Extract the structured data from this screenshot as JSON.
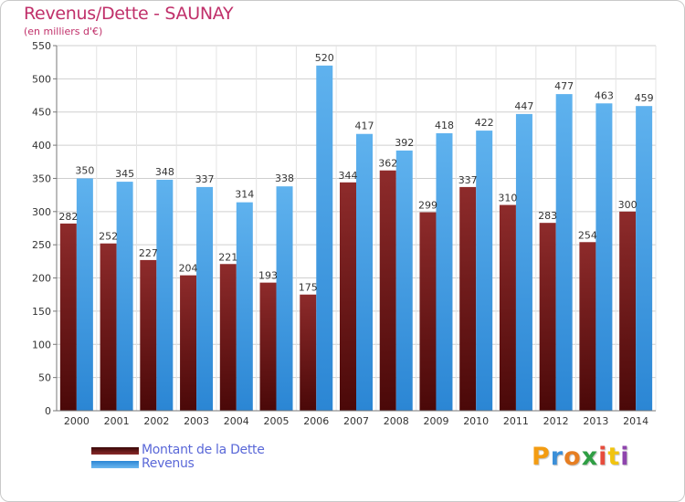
{
  "title": "Revenus/Dette - SAUNAY",
  "subtitle": "(en milliers d'€)",
  "legend": {
    "dette_label": "Montant de la Dette",
    "revenus_label": "Revenus"
  },
  "logo": {
    "letters": [
      "P",
      "r",
      "o",
      "x",
      "i",
      "t",
      "i"
    ],
    "colors": [
      "#f39c12",
      "#3b8fd8",
      "#e67e22",
      "#2f9e44",
      "#e74c3c",
      "#f1c40f",
      "#8e44ad"
    ]
  },
  "chart_data": {
    "type": "bar",
    "categories": [
      "2000",
      "2001",
      "2002",
      "2003",
      "2004",
      "2005",
      "2006",
      "2007",
      "2008",
      "2009",
      "2010",
      "2011",
      "2012",
      "2013",
      "2014"
    ],
    "series": [
      {
        "name": "Montant de la Dette",
        "color": "#7a1f1f",
        "values": [
          282,
          252,
          227,
          204,
          221,
          193,
          175,
          344,
          362,
          299,
          337,
          310,
          283,
          254,
          300
        ]
      },
      {
        "name": "Revenus",
        "color": "#3d9be3",
        "values": [
          350,
          345,
          348,
          337,
          314,
          338,
          520,
          417,
          392,
          418,
          422,
          447,
          477,
          463,
          459
        ]
      }
    ],
    "y_ticks": [
      0,
      50,
      100,
      150,
      200,
      250,
      300,
      350,
      400,
      450,
      500,
      550
    ],
    "ylim": [
      0,
      550
    ],
    "grid": true,
    "legend_position": "bottom-left"
  }
}
